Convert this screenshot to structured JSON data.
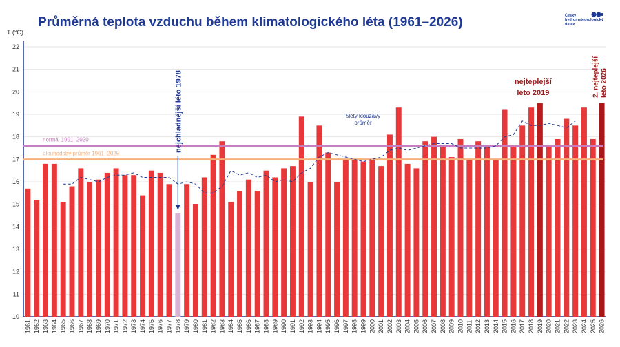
{
  "title": "Průměrná teplota vzduchu během klimatologického léta (1961–2026)",
  "logo": {
    "text": "Český hydrometeorologický ústav",
    "icon": "chmu-logo-dots"
  },
  "colors": {
    "bar": "#e8383a",
    "highlight_2019": "#b91c1c",
    "highlight_2026": "#a8171a",
    "coldest": "#d9b3d6",
    "normal_line": "#c77dc2",
    "longterm_line": "#f7b07a",
    "moving_avg": "#1f3a93",
    "title": "#1f3a93",
    "annotation_dark": "#9b1c1c"
  },
  "chart_data": {
    "type": "bar",
    "ylabel": "T (°C)",
    "ylim": [
      10,
      22
    ],
    "yticks": [
      10,
      11,
      12,
      13,
      14,
      15,
      16,
      17,
      18,
      19,
      20,
      21,
      22
    ],
    "grid": true,
    "categories": [
      "1961",
      "1962",
      "1963",
      "1964",
      "1965",
      "1966",
      "1967",
      "1968",
      "1969",
      "1970",
      "1971",
      "1972",
      "1973",
      "1974",
      "1975",
      "1976",
      "1977",
      "1978",
      "1979",
      "1980",
      "1981",
      "1982",
      "1983",
      "1984",
      "1985",
      "1986",
      "1987",
      "1988",
      "1989",
      "1990",
      "1991",
      "1992",
      "1993",
      "1994",
      "1995",
      "1996",
      "1997",
      "1998",
      "1999",
      "2000",
      "2001",
      "2002",
      "2003",
      "2004",
      "2005",
      "2006",
      "2007",
      "2008",
      "2009",
      "2010",
      "2011",
      "2012",
      "2013",
      "2014",
      "2015",
      "2016",
      "2017",
      "2018",
      "2019",
      "2020",
      "2021",
      "2022",
      "2023",
      "2024",
      "2025",
      "2026"
    ],
    "values": [
      15.7,
      15.2,
      16.8,
      16.8,
      15.1,
      15.8,
      16.6,
      16.0,
      16.1,
      16.4,
      16.6,
      16.3,
      16.3,
      15.4,
      16.5,
      16.4,
      15.9,
      14.6,
      15.9,
      15.0,
      16.2,
      17.2,
      17.8,
      15.1,
      15.6,
      16.1,
      15.6,
      16.5,
      16.2,
      16.6,
      16.7,
      18.9,
      16.0,
      18.5,
      17.3,
      16.0,
      17.0,
      17.0,
      16.9,
      17.0,
      16.7,
      18.1,
      19.3,
      16.8,
      16.6,
      17.8,
      18.0,
      17.6,
      17.1,
      17.9,
      17.0,
      17.8,
      17.6,
      17.0,
      19.2,
      17.6,
      18.5,
      19.3,
      19.5,
      17.6,
      17.9,
      18.8,
      18.5,
      19.3,
      17.9,
      19.5
    ],
    "moving_average": {
      "label": "5letý klouzavý průměr",
      "start_year": "1965",
      "values": [
        15.9,
        15.9,
        16.2,
        16.1,
        16.0,
        16.2,
        16.3,
        16.3,
        16.4,
        16.2,
        16.2,
        16.2,
        16.2,
        15.9,
        16.0,
        15.9,
        15.5,
        15.5,
        15.8,
        16.5,
        16.3,
        16.4,
        16.2,
        16.3,
        16.0,
        16.1,
        16.0,
        16.4,
        16.6,
        17.1,
        17.3,
        17.2,
        17.1,
        17.0,
        16.9,
        17.0,
        17.1,
        17.4,
        17.5,
        17.4,
        17.5,
        17.6,
        17.7,
        17.7,
        17.7,
        17.5,
        17.5,
        17.5,
        17.5,
        17.6,
        18.0,
        18.1,
        18.7,
        18.5,
        18.5,
        18.6,
        18.5,
        18.4,
        18.7
      ]
    },
    "reference_lines": [
      {
        "label": "normál 1991–2020",
        "value": 17.6
      },
      {
        "label": "dlouhodobý průměr 1961–2025",
        "value": 17.0
      }
    ],
    "annotations": [
      {
        "text": "nejchladnější léto 1978",
        "year": "1978"
      },
      {
        "text_line1": "nejteplejší",
        "text_line2": "léto 2019",
        "year": "2019"
      },
      {
        "text_line1": "2. nejteplejší",
        "text_line2": "léto 2026",
        "year": "2026"
      }
    ]
  }
}
